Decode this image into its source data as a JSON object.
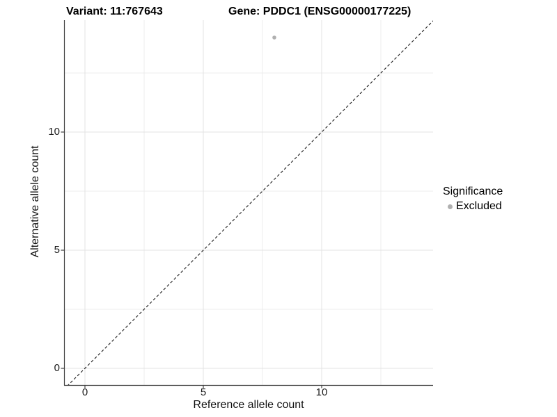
{
  "chart_data": {
    "type": "scatter",
    "titles": [
      "Variant: 11:767643",
      "Gene: PDDC1 (ENSG00000177225)"
    ],
    "xlabel": "Reference allele count",
    "ylabel": "Alternative allele count",
    "xlim": [
      -0.9,
      14.7
    ],
    "ylim": [
      -0.72,
      14.72
    ],
    "x_ticks": [
      0,
      5,
      10
    ],
    "y_ticks": [
      0,
      5,
      10
    ],
    "x_minor_breaks": [
      2.5,
      7.5,
      12.5
    ],
    "y_minor_breaks": [
      2.5,
      7.5,
      12.5
    ],
    "grid": "major-and-minor",
    "points": [
      {
        "x": 8,
        "y": 14,
        "series": "Excluded"
      }
    ],
    "reference_line": {
      "type": "identity",
      "style": "dashed"
    },
    "legend": {
      "position": "right",
      "title": "Significance",
      "items": [
        {
          "label": "Excluded",
          "color": "#b0b0b0"
        }
      ]
    },
    "colors": {
      "point_excluded": "#b0b0b0",
      "grid_major": "#e3e3e3",
      "grid_minor": "#ececec",
      "axis_line": "#404040",
      "reference_line": "#1a1a1a",
      "background": "#ffffff"
    }
  }
}
